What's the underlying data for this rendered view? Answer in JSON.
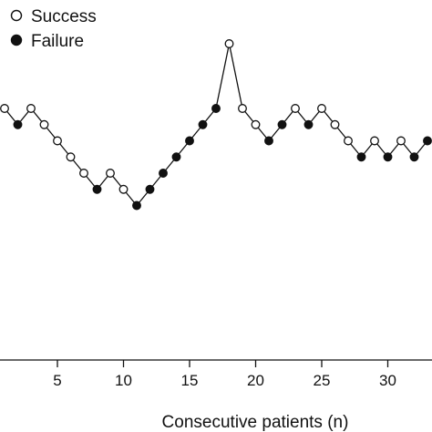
{
  "chart_data": {
    "type": "line",
    "xlabel": "Consecutive patients (n)",
    "ylabel": "",
    "title": "",
    "xlim": [
      1,
      33.5
    ],
    "ylim": [
      0,
      18
    ],
    "xticks": [
      5,
      10,
      15,
      20,
      25,
      30
    ],
    "xtick_labels": [
      "5",
      "10",
      "15",
      "20",
      "25",
      "30"
    ],
    "grid": false,
    "legend_position": "top-left",
    "legend": [
      {
        "label": "Success",
        "marker": "open-circle"
      },
      {
        "label": "Failure",
        "marker": "filled-circle"
      }
    ],
    "points": [
      {
        "x": 1,
        "y": 14,
        "outcome": "success"
      },
      {
        "x": 2,
        "y": 13,
        "outcome": "failure"
      },
      {
        "x": 3,
        "y": 14,
        "outcome": "success"
      },
      {
        "x": 4,
        "y": 13,
        "outcome": "success"
      },
      {
        "x": 5,
        "y": 12,
        "outcome": "success"
      },
      {
        "x": 6,
        "y": 11,
        "outcome": "success"
      },
      {
        "x": 7,
        "y": 10,
        "outcome": "success"
      },
      {
        "x": 8,
        "y": 9,
        "outcome": "failure"
      },
      {
        "x": 9,
        "y": 10,
        "outcome": "success"
      },
      {
        "x": 10,
        "y": 9,
        "outcome": "success"
      },
      {
        "x": 11,
        "y": 8,
        "outcome": "failure"
      },
      {
        "x": 12,
        "y": 9,
        "outcome": "failure"
      },
      {
        "x": 13,
        "y": 10,
        "outcome": "failure"
      },
      {
        "x": 14,
        "y": 11,
        "outcome": "failure"
      },
      {
        "x": 15,
        "y": 12,
        "outcome": "failure"
      },
      {
        "x": 16,
        "y": 13,
        "outcome": "failure"
      },
      {
        "x": 17,
        "y": 14,
        "outcome": "failure"
      },
      {
        "x": 18,
        "y": 18,
        "outcome": "success"
      },
      {
        "x": 19,
        "y": 14,
        "outcome": "success"
      },
      {
        "x": 20,
        "y": 13,
        "outcome": "success"
      },
      {
        "x": 21,
        "y": 12,
        "outcome": "failure"
      },
      {
        "x": 22,
        "y": 13,
        "outcome": "failure"
      },
      {
        "x": 23,
        "y": 14,
        "outcome": "success"
      },
      {
        "x": 24,
        "y": 13,
        "outcome": "failure"
      },
      {
        "x": 25,
        "y": 14,
        "outcome": "success"
      },
      {
        "x": 26,
        "y": 13,
        "outcome": "success"
      },
      {
        "x": 27,
        "y": 12,
        "outcome": "success"
      },
      {
        "x": 28,
        "y": 11,
        "outcome": "failure"
      },
      {
        "x": 29,
        "y": 12,
        "outcome": "success"
      },
      {
        "x": 30,
        "y": 11,
        "outcome": "failure"
      },
      {
        "x": 31,
        "y": 12,
        "outcome": "success"
      },
      {
        "x": 32,
        "y": 11,
        "outcome": "failure"
      },
      {
        "x": 33,
        "y": 12,
        "outcome": "failure"
      }
    ]
  }
}
